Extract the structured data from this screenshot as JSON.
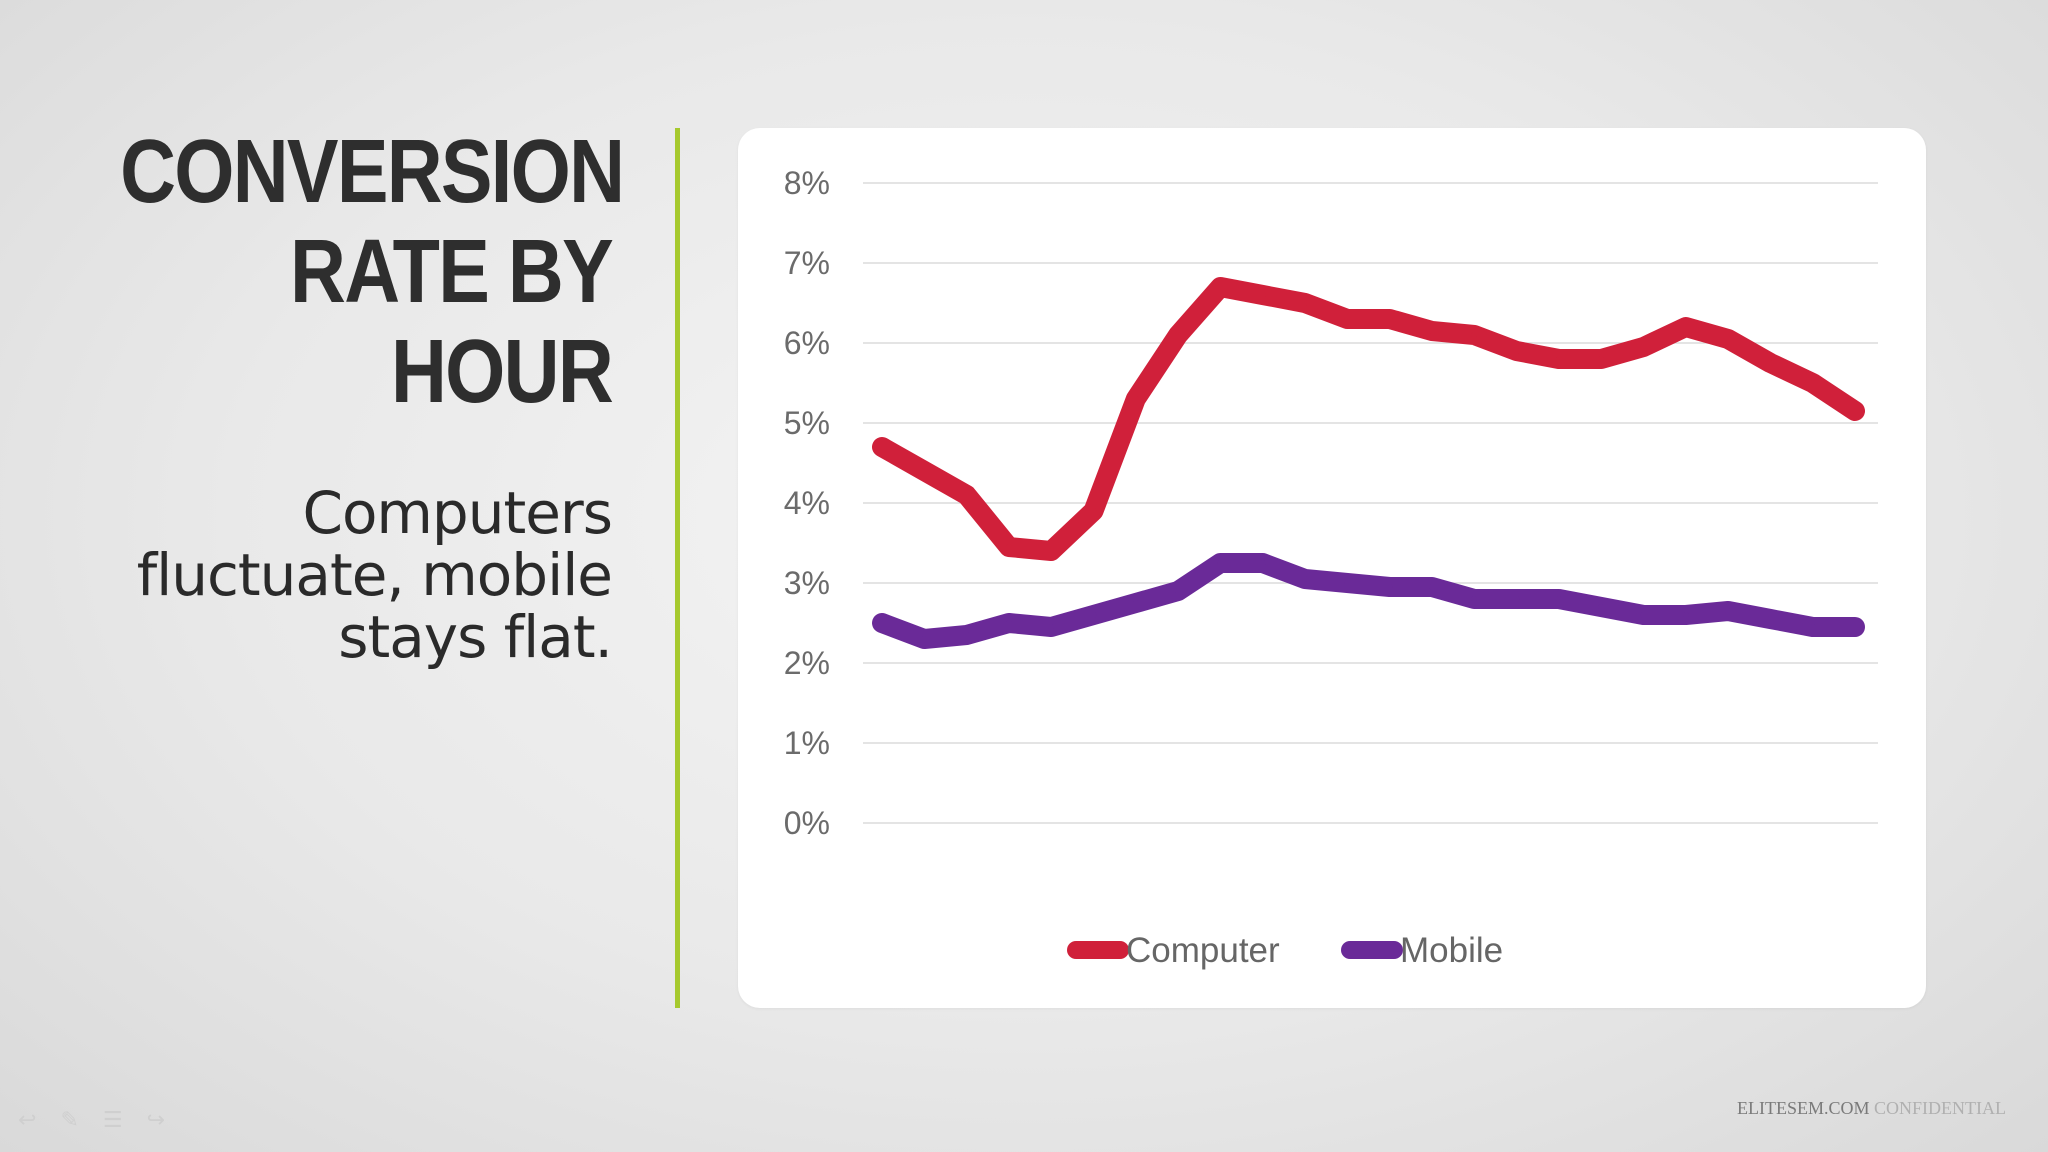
{
  "slide": {
    "title_lines": [
      "CONVERSION",
      "RATE BY",
      "HOUR"
    ],
    "subtitle_lines": [
      "Computers",
      "fluctuate, mobile",
      "stays flat."
    ],
    "footer_brand": "ELITESEM.COM",
    "footer_note": "CONFIDENTIAL",
    "accent_color": "#a6c92e",
    "nav_icons": [
      "back-arrow-icon",
      "pen-icon",
      "menu-icon",
      "forward-arrow-icon"
    ]
  },
  "chart_data": {
    "type": "line",
    "title": "",
    "xlabel": "",
    "ylabel": "",
    "ylim": [
      0,
      8
    ],
    "y_ticks": [
      "0%",
      "1%",
      "2%",
      "3%",
      "4%",
      "5%",
      "6%",
      "7%",
      "8%"
    ],
    "x": [
      "0",
      "1",
      "2",
      "3",
      "4",
      "5",
      "6",
      "7",
      "8",
      "9",
      "10",
      "11",
      "12",
      "13",
      "14",
      "15",
      "16",
      "17",
      "18",
      "19",
      "20",
      "21",
      "22",
      "23"
    ],
    "grid": true,
    "legend": "bottom-center",
    "series": [
      {
        "name": "Computer",
        "color": "#d0203a",
        "values": [
          4.7,
          4.4,
          4.1,
          3.45,
          3.4,
          3.9,
          5.3,
          6.1,
          6.7,
          6.6,
          6.5,
          6.3,
          6.3,
          6.15,
          6.1,
          5.9,
          5.8,
          5.8,
          5.95,
          6.2,
          6.05,
          5.75,
          5.5,
          5.15
        ]
      },
      {
        "name": "Mobile",
        "color": "#6a2a98",
        "values": [
          2.5,
          2.3,
          2.35,
          2.5,
          2.45,
          2.6,
          2.75,
          2.9,
          3.25,
          3.25,
          3.05,
          3.0,
          2.95,
          2.95,
          2.8,
          2.8,
          2.8,
          2.7,
          2.6,
          2.6,
          2.65,
          2.55,
          2.45,
          2.45
        ]
      }
    ]
  }
}
